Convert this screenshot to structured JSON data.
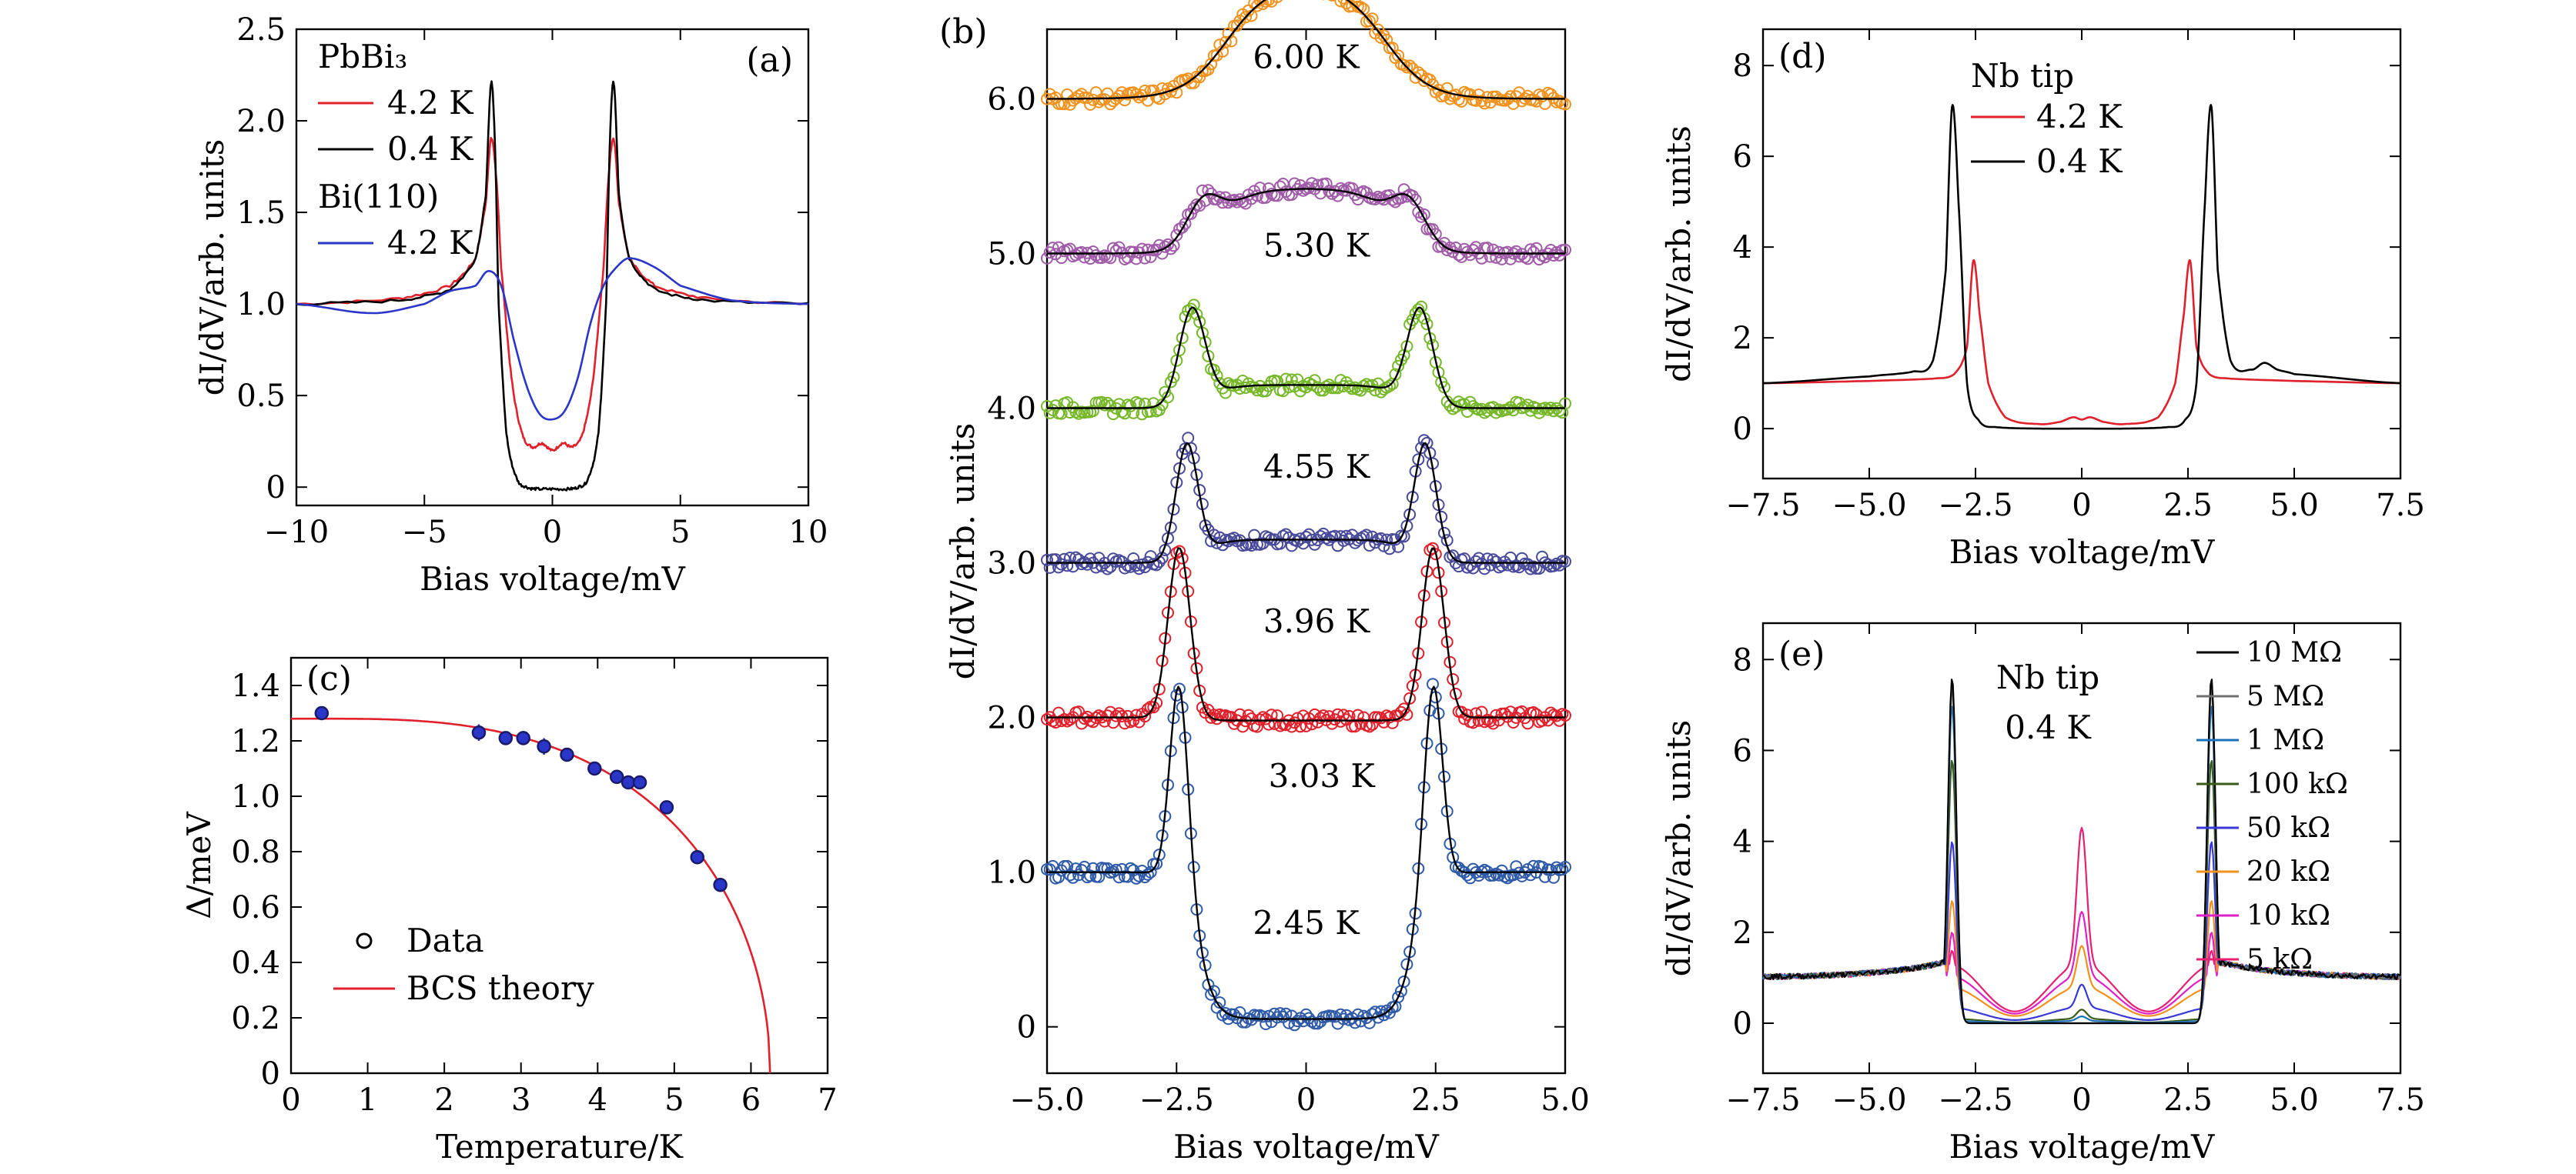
{
  "colors": {
    "black": "#000000",
    "red": "#e0202a",
    "blue": "#2a36c8",
    "orange": "#f0921e",
    "purple": "#a05ca8",
    "green": "#76b82a",
    "indigo": "#4a4a9a",
    "navy": "#2e5aa8",
    "gray": "#707070",
    "olive": "#3a5a1a",
    "magenta": "#e020c8",
    "pink": "#e82070",
    "royal": "#3838d8",
    "steel": "#1e70b8"
  },
  "chart_data": [
    {
      "id": "a",
      "panel_label": "(a)",
      "type": "line",
      "xlabel": "Bias voltage/mV",
      "ylabel": "dI/dV/arb. units",
      "xlim": [
        -10,
        10
      ],
      "ylim": [
        -0.1,
        2.5
      ],
      "xticks": [
        -10,
        -5,
        0,
        5,
        10
      ],
      "xticklabels": [
        "−10",
        "−5",
        "0",
        "5",
        "10"
      ],
      "yticks": [
        0,
        0.5,
        1.0,
        1.5,
        2.0,
        2.5
      ],
      "yticklabels": [
        "0",
        "0.5",
        "1.0",
        "1.5",
        "2.0",
        "2.5"
      ],
      "legend_title_1": "PbBi₃",
      "legend_title_2": "Bi(110)",
      "series": [
        {
          "name": "4.2 K",
          "group": "PbBi₃",
          "color": "#e0202a",
          "x": [
            -10,
            -6,
            -4,
            -3,
            -2.6,
            -2.4,
            -2.2,
            -2.0,
            -1.6,
            -1.2,
            -0.8,
            -0.4,
            0,
            0.4,
            0.8,
            1.2,
            1.6,
            2.0,
            2.2,
            2.4,
            2.6,
            3,
            4,
            6,
            10
          ],
          "y": [
            1.0,
            1.03,
            1.1,
            1.25,
            1.55,
            1.9,
            1.7,
            1.2,
            0.6,
            0.3,
            0.22,
            0.24,
            0.2,
            0.24,
            0.22,
            0.3,
            0.6,
            1.2,
            1.7,
            1.9,
            1.55,
            1.25,
            1.1,
            1.03,
            1.0
          ]
        },
        {
          "name": "0.4 K",
          "group": "PbBi₃",
          "color": "#000000",
          "x": [
            -10,
            -6,
            -4,
            -3,
            -2.6,
            -2.4,
            -2.25,
            -2.1,
            -1.8,
            -1.4,
            -1.0,
            -0.6,
            0,
            0.6,
            1.0,
            1.4,
            1.8,
            2.1,
            2.25,
            2.4,
            2.6,
            3,
            4,
            6,
            10
          ],
          "y": [
            1.0,
            1.02,
            1.08,
            1.25,
            1.6,
            2.2,
            1.9,
            1.0,
            0.3,
            0.05,
            0.0,
            -0.01,
            -0.01,
            -0.01,
            0.0,
            0.05,
            0.3,
            1.0,
            1.9,
            2.2,
            1.6,
            1.25,
            1.08,
            1.02,
            1.0
          ]
        },
        {
          "name": "4.2 K",
          "group": "Bi(110)",
          "color": "#2a36c8",
          "x": [
            -10,
            -7,
            -5,
            -4,
            -3,
            -2.5,
            -2,
            -1.5,
            -1,
            -0.5,
            0,
            0.5,
            1,
            1.5,
            2,
            2.5,
            3,
            4,
            5,
            7,
            10
          ],
          "y": [
            1.0,
            0.95,
            1.0,
            1.07,
            1.1,
            1.18,
            1.1,
            0.8,
            0.55,
            0.4,
            0.37,
            0.42,
            0.6,
            0.9,
            1.1,
            1.2,
            1.25,
            1.2,
            1.1,
            1.02,
            1.0
          ]
        }
      ]
    },
    {
      "id": "b",
      "panel_label": "(b)",
      "type": "scatter+line",
      "xlabel": "Bias voltage/mV",
      "ylabel": "dI/dV/arb. units",
      "xlim": [
        -5,
        5
      ],
      "ylim": [
        -0.3,
        6.45
      ],
      "xticks": [
        -5,
        -2.5,
        0,
        2.5,
        5
      ],
      "xticklabels": [
        "−5.0",
        "−2.5",
        "0",
        "2.5",
        "5.0"
      ],
      "yticks": [
        0,
        1,
        2,
        3,
        4,
        5,
        6
      ],
      "yticklabels": [
        "0",
        "1.0",
        "2.0",
        "3.0",
        "4.0",
        "5.0",
        "6.0"
      ],
      "series": [
        {
          "name": "2.45 K",
          "color": "#2e5aa8",
          "offset": 0.0,
          "peak_x": 2.45,
          "peak_height": 1.3,
          "floor": -0.95,
          "peak_width": 0.25,
          "label_x": 0,
          "label_y": 0.6
        },
        {
          "name": "3.03 K",
          "color": "#e0202a",
          "offset": 1.0,
          "peak_x": 2.45,
          "peak_height": 1.1,
          "floor": -0.02,
          "peak_width": 0.3,
          "label_x": 0.3,
          "label_y": 1.55
        },
        {
          "name": "3.96 K",
          "color": "#4a4a9a",
          "offset": 2.0,
          "peak_x": 2.3,
          "peak_height": 0.75,
          "floor": 0.15,
          "peak_width": 0.3,
          "label_x": 0.2,
          "label_y": 2.55
        },
        {
          "name": "4.55 K",
          "color": "#76b82a",
          "offset": 3.0,
          "peak_x": 2.2,
          "peak_height": 0.62,
          "floor": 0.15,
          "peak_width": 0.35,
          "label_x": 0.2,
          "label_y": 3.55
        },
        {
          "name": "5.30 K",
          "color": "#a05ca8",
          "offset": 4.0,
          "peak_x": 2.0,
          "peak_height": 0.25,
          "floor": 0.42,
          "peak_width": 0.45,
          "label_x": 0.2,
          "label_y": 4.98
        },
        {
          "name": "6.00 K",
          "color": "#f0921e",
          "offset": 5.0,
          "peak_x": 1.8,
          "peak_height": 0.0,
          "floor": 0.75,
          "peak_width": 0.6,
          "label_x": 0,
          "label_y": 6.2
        }
      ]
    },
    {
      "id": "c",
      "panel_label": "(c)",
      "type": "scatter+line",
      "xlabel": "Temperature/K",
      "ylabel": "Δ/meV",
      "xlim": [
        0,
        7
      ],
      "ylim": [
        0,
        1.5
      ],
      "xticks": [
        0,
        1,
        2,
        3,
        4,
        5,
        6,
        7
      ],
      "xticklabels": [
        "0",
        "1",
        "2",
        "3",
        "4",
        "5",
        "6",
        "7"
      ],
      "yticks": [
        0,
        0.2,
        0.4,
        0.6,
        0.8,
        1.0,
        1.2,
        1.4
      ],
      "yticklabels": [
        "0",
        "0.2",
        "0.4",
        "0.6",
        "0.8",
        "1.0",
        "1.2",
        "1.4"
      ],
      "data_legend": "Data",
      "theory_legend": "BCS theory",
      "points": {
        "x": [
          0.4,
          2.45,
          2.8,
          3.03,
          3.3,
          3.6,
          3.96,
          4.25,
          4.4,
          4.55,
          4.9,
          5.3,
          5.6
        ],
        "y": [
          1.3,
          1.23,
          1.21,
          1.21,
          1.18,
          1.15,
          1.1,
          1.07,
          1.05,
          1.05,
          0.96,
          0.78,
          0.68
        ],
        "err": [
          0.01,
          0.03,
          0.02,
          0.02,
          0.03,
          0.02,
          0.01,
          0.01,
          0.02,
          0.01,
          0.02,
          0.01,
          0.01
        ]
      },
      "bcs": {
        "delta0": 1.28,
        "tc": 6.25
      }
    },
    {
      "id": "d",
      "panel_label": "(d)",
      "type": "line",
      "xlabel": "Bias voltage/mV",
      "ylabel": "dI/dV/arb. units",
      "xlim": [
        -7.5,
        7.5
      ],
      "ylim": [
        -1.1,
        8.8
      ],
      "xticks": [
        -7.5,
        -5,
        -2.5,
        0,
        2.5,
        5,
        7.5
      ],
      "xticklabels": [
        "−7.5",
        "−5.0",
        "−2.5",
        "0",
        "2.5",
        "5.0",
        "7.5"
      ],
      "yticks": [
        0,
        2,
        4,
        6,
        8
      ],
      "yticklabels": [
        "0",
        "2",
        "4",
        "6",
        "8"
      ],
      "legend_title": "Nb tip",
      "series": [
        {
          "name": "4.2 K",
          "color": "#e0202a",
          "x": [
            -7.5,
            -5,
            -3.5,
            -3,
            -2.7,
            -2.55,
            -2.4,
            -2.2,
            -1.8,
            -1,
            -0.5,
            -0.2,
            0,
            0.2,
            0.5,
            1,
            1.8,
            2.2,
            2.4,
            2.55,
            2.7,
            3,
            3.5,
            5,
            7.5
          ],
          "y": [
            1.0,
            1.05,
            1.1,
            1.2,
            1.8,
            3.7,
            2.5,
            1.0,
            0.25,
            0.1,
            0.15,
            0.25,
            0.2,
            0.25,
            0.15,
            0.1,
            0.25,
            1.0,
            2.5,
            3.7,
            1.8,
            1.2,
            1.1,
            1.05,
            1.0
          ]
        },
        {
          "name": "0.4 K",
          "color": "#000000",
          "x": [
            -7.5,
            -5,
            -4,
            -3.5,
            -3.2,
            -3.05,
            -2.9,
            -2.7,
            -2.4,
            -2,
            -1,
            0,
            1,
            2,
            2.4,
            2.7,
            2.9,
            3.05,
            3.2,
            3.5,
            4,
            4.3,
            4.6,
            5,
            7.5
          ],
          "y": [
            1.0,
            1.15,
            1.25,
            1.5,
            3.5,
            7.1,
            5.0,
            1.0,
            0.15,
            0.03,
            0.0,
            0.0,
            0.0,
            0.03,
            0.15,
            1.0,
            5.0,
            7.1,
            3.5,
            1.5,
            1.3,
            1.45,
            1.3,
            1.2,
            1.0
          ]
        }
      ]
    },
    {
      "id": "e",
      "panel_label": "(e)",
      "type": "line",
      "xlabel": "Bias voltage/mV",
      "ylabel": "dI/dV/arb. units",
      "xlim": [
        -7.5,
        7.5
      ],
      "ylim": [
        -1.1,
        8.8
      ],
      "xticks": [
        -7.5,
        -5,
        -2.5,
        0,
        2.5,
        5,
        7.5
      ],
      "xticklabels": [
        "−7.5",
        "−5.0",
        "−2.5",
        "0",
        "2.5",
        "5.0",
        "7.5"
      ],
      "yticks": [
        0,
        2,
        4,
        6,
        8
      ],
      "yticklabels": [
        "0",
        "2",
        "4",
        "6",
        "8"
      ],
      "legend_title": "Nb tip",
      "legend_subtitle": "0.4 K",
      "series": [
        {
          "name": "10 MΩ",
          "color": "#000000",
          "peak": 7.6,
          "center": 0.0,
          "wing": 0.0
        },
        {
          "name": "5 MΩ",
          "color": "#707070",
          "peak": 7.4,
          "center": 0.0,
          "wing": 0.0
        },
        {
          "name": "1 MΩ",
          "color": "#1e70b8",
          "peak": 7.0,
          "center": 0.1,
          "wing": 0.05
        },
        {
          "name": "100 kΩ",
          "color": "#3a5a1a",
          "peak": 5.8,
          "center": 0.2,
          "wing": 0.1
        },
        {
          "name": "50 kΩ",
          "color": "#3838d8",
          "peak": 4.0,
          "center": 0.5,
          "wing": 0.35
        },
        {
          "name": "20 kΩ",
          "color": "#f0921e",
          "peak": 2.7,
          "center": 0.9,
          "wing": 0.8
        },
        {
          "name": "10 kΩ",
          "color": "#e020c8",
          "peak": 2.0,
          "center": 1.4,
          "wing": 1.05
        },
        {
          "name": "5 kΩ",
          "color": "#e82070",
          "peak": 1.6,
          "center": 3.0,
          "wing": 1.3
        }
      ]
    }
  ]
}
